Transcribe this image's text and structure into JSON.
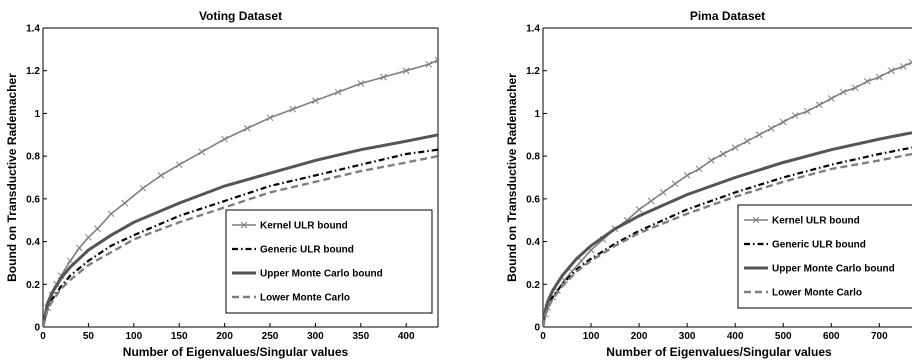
{
  "chart_data": [
    {
      "type": "line",
      "title": "Voting Dataset",
      "xlabel": "Number of Eigenvalues/Singular values",
      "ylabel": "Bound on Transductive Rademacher",
      "xlim": [
        0,
        435
      ],
      "ylim": [
        0,
        1.4
      ],
      "xticks": [
        "0",
        "50",
        "100",
        "150",
        "200",
        "250",
        "300",
        "350",
        "400"
      ],
      "yticks": [
        "0",
        "0.2",
        "0.4",
        "0.6",
        "0.8",
        "1",
        "1.2",
        "1.4"
      ],
      "grid": false,
      "legend_position": "lower-right",
      "series": [
        {
          "name": "Kernel ULR bound",
          "color": "#7f7f7f",
          "dash": "solid",
          "marker": "x",
          "x": [
            0,
            5,
            10,
            15,
            20,
            30,
            40,
            50,
            60,
            75,
            90,
            110,
            130,
            150,
            175,
            200,
            225,
            250,
            275,
            300,
            325,
            350,
            375,
            400,
            425,
            435
          ],
          "y": [
            0,
            0.09,
            0.15,
            0.2,
            0.24,
            0.31,
            0.37,
            0.42,
            0.46,
            0.53,
            0.58,
            0.65,
            0.71,
            0.76,
            0.82,
            0.88,
            0.93,
            0.98,
            1.02,
            1.06,
            1.1,
            1.14,
            1.17,
            1.2,
            1.23,
            1.25
          ]
        },
        {
          "name": "Generic ULR bound",
          "color": "#000000",
          "dash": "dashdot",
          "marker": "none",
          "x": [
            0,
            5,
            10,
            20,
            30,
            50,
            75,
            100,
            150,
            200,
            250,
            300,
            350,
            400,
            435
          ],
          "y": [
            0,
            0.09,
            0.13,
            0.19,
            0.24,
            0.31,
            0.38,
            0.43,
            0.52,
            0.59,
            0.66,
            0.71,
            0.76,
            0.81,
            0.83
          ]
        },
        {
          "name": "Upper Monte Carlo bound",
          "color": "#555555",
          "dash": "solid",
          "marker": "none",
          "x": [
            0,
            5,
            10,
            20,
            30,
            50,
            75,
            100,
            150,
            200,
            250,
            300,
            350,
            400,
            435
          ],
          "y": [
            0,
            0.11,
            0.16,
            0.23,
            0.28,
            0.36,
            0.43,
            0.49,
            0.58,
            0.66,
            0.72,
            0.78,
            0.83,
            0.87,
            0.9
          ]
        },
        {
          "name": "Lower Monte Carlo",
          "color": "#7f7f7f",
          "dash": "dashed",
          "marker": "none",
          "x": [
            0,
            5,
            10,
            20,
            30,
            50,
            75,
            100,
            150,
            200,
            250,
            300,
            350,
            400,
            435
          ],
          "y": [
            0,
            0.08,
            0.12,
            0.18,
            0.22,
            0.29,
            0.35,
            0.41,
            0.49,
            0.56,
            0.63,
            0.68,
            0.73,
            0.77,
            0.8
          ]
        }
      ]
    },
    {
      "type": "line",
      "title": "Pima Dataset",
      "xlabel": "Number of Eigenvalues/Singular values",
      "ylabel": "Bound on Transductive Rademacher",
      "xlim": [
        0,
        768
      ],
      "ylim": [
        0,
        1.4
      ],
      "xticks": [
        "0",
        "100",
        "200",
        "300",
        "400",
        "500",
        "600",
        "700"
      ],
      "yticks": [
        "0",
        "0.2",
        "0.4",
        "0.6",
        "0.8",
        "1",
        "1.2",
        "1.4"
      ],
      "grid": false,
      "legend_position": "lower-right",
      "series": [
        {
          "name": "Kernel ULR bound",
          "color": "#7f7f7f",
          "dash": "solid",
          "marker": "x",
          "x": [
            0,
            5,
            10,
            20,
            30,
            45,
            60,
            80,
            100,
            125,
            150,
            175,
            200,
            225,
            250,
            275,
            300,
            325,
            350,
            375,
            400,
            425,
            450,
            475,
            500,
            525,
            550,
            575,
            600,
            625,
            650,
            675,
            700,
            725,
            750,
            768
          ],
          "y": [
            0,
            0.06,
            0.09,
            0.14,
            0.17,
            0.22,
            0.26,
            0.31,
            0.36,
            0.41,
            0.46,
            0.5,
            0.55,
            0.59,
            0.63,
            0.67,
            0.71,
            0.74,
            0.78,
            0.81,
            0.84,
            0.87,
            0.9,
            0.93,
            0.96,
            0.99,
            1.01,
            1.04,
            1.07,
            1.1,
            1.12,
            1.15,
            1.17,
            1.2,
            1.22,
            1.24
          ]
        },
        {
          "name": "Generic ULR bound",
          "color": "#000000",
          "dash": "dashdot",
          "marker": "none",
          "x": [
            0,
            5,
            10,
            20,
            40,
            70,
            100,
            150,
            200,
            300,
            400,
            500,
            600,
            700,
            768
          ],
          "y": [
            0,
            0.07,
            0.1,
            0.14,
            0.2,
            0.27,
            0.32,
            0.39,
            0.45,
            0.55,
            0.63,
            0.7,
            0.76,
            0.81,
            0.84
          ]
        },
        {
          "name": "Upper Monte Carlo bound",
          "color": "#555555",
          "dash": "solid",
          "marker": "none",
          "x": [
            0,
            5,
            10,
            20,
            40,
            70,
            100,
            150,
            200,
            300,
            400,
            500,
            600,
            700,
            768
          ],
          "y": [
            0,
            0.08,
            0.12,
            0.17,
            0.24,
            0.32,
            0.38,
            0.46,
            0.52,
            0.62,
            0.7,
            0.77,
            0.83,
            0.88,
            0.91
          ]
        },
        {
          "name": "Lower Monte Carlo",
          "color": "#7f7f7f",
          "dash": "dashed",
          "marker": "none",
          "x": [
            0,
            5,
            10,
            20,
            40,
            70,
            100,
            150,
            200,
            300,
            400,
            500,
            600,
            700,
            768
          ],
          "y": [
            0,
            0.06,
            0.09,
            0.13,
            0.19,
            0.26,
            0.31,
            0.38,
            0.44,
            0.53,
            0.61,
            0.68,
            0.74,
            0.78,
            0.81
          ]
        }
      ]
    }
  ]
}
